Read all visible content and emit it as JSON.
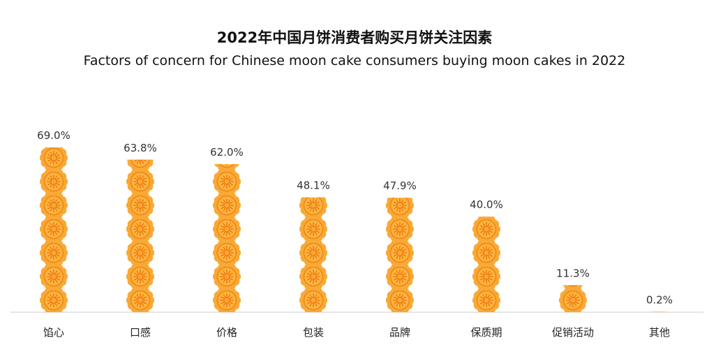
{
  "chart_data": {
    "type": "bar",
    "title": "2022年中国月饼消费者购买月饼关注因素",
    "subtitle": "Factors of concern for Chinese moon cake consumers buying moon cakes in 2022",
    "categories": [
      "馅心",
      "口感",
      "价格",
      "包装",
      "品牌",
      "保质期",
      "促销活动",
      "其他"
    ],
    "values": [
      69.0,
      63.8,
      62.0,
      48.1,
      47.9,
      40.0,
      11.3,
      0.2
    ],
    "value_labels": [
      "69.0%",
      "63.8%",
      "62.0%",
      "48.1%",
      "47.9%",
      "40.0%",
      "11.3%",
      "0.2%"
    ],
    "unit": "%",
    "ylim": [
      0,
      70
    ],
    "grid": false,
    "legend": "none",
    "mark": "mooncake-icon",
    "colors": {
      "petal": "#f9a936",
      "petal_dark": "#f08c1e",
      "center": "#fbb640",
      "center_line": "#f07d14",
      "axis": "#cccccc"
    }
  }
}
